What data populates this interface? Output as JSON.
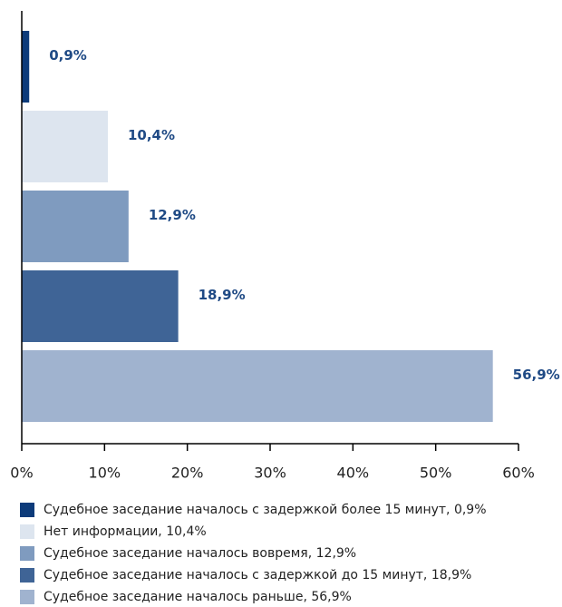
{
  "chart_data": {
    "type": "hbar",
    "categories": [
      "Судебное заседание началось с задержкой более 15 минут, 0,9%",
      "Нет информации, 10,4%",
      "Судебное заседание началось вовремя, 12,9%",
      "Судебное заседание началось с задержкой до 15 минут, 18,9%",
      "Судебное заседание началось раньше, 56,9%"
    ],
    "values": [
      0.9,
      10.4,
      12.9,
      18.9,
      56.9
    ],
    "value_labels": [
      "0,9%",
      "10,4%",
      "12,9%",
      "18,9%",
      "56,9%"
    ],
    "colors": [
      "#0d3b7a",
      "#dde5ef",
      "#7f9bbf",
      "#3f6496",
      "#a0b3cf"
    ],
    "xlim": [
      0,
      60
    ],
    "xticks": [
      {
        "value": 0,
        "label": "0%"
      },
      {
        "value": 10,
        "label": "10%"
      },
      {
        "value": 20,
        "label": "20%"
      },
      {
        "value": 30,
        "label": "30%"
      },
      {
        "value": 40,
        "label": "40%"
      },
      {
        "value": 50,
        "label": "50%"
      },
      {
        "value": 60,
        "label": "60%"
      }
    ],
    "legend": "bottom"
  }
}
